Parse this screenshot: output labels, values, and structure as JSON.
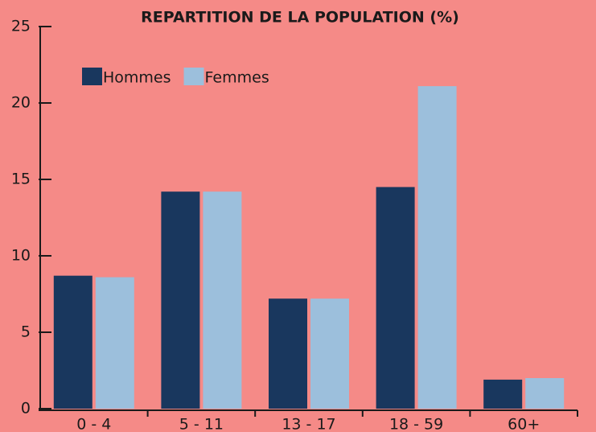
{
  "chart_data": {
    "type": "bar",
    "title": "REPARTITION DE LA POPULATION (%)",
    "categories": [
      "0 - 4",
      "5 - 11",
      "13 - 17",
      "18 - 59",
      "60+"
    ],
    "series": [
      {
        "name": "Hommes",
        "color": "#19375e",
        "values": [
          8.7,
          14.2,
          7.2,
          14.5,
          1.9
        ]
      },
      {
        "name": "Femmes",
        "color": "#9cbfdc",
        "values": [
          8.6,
          14.2,
          7.2,
          21.1,
          2.0
        ]
      }
    ],
    "ylim": [
      0,
      25
    ],
    "yticks": [
      0,
      5,
      10,
      15,
      20,
      25
    ],
    "grid": false,
    "legend": "top-left"
  }
}
